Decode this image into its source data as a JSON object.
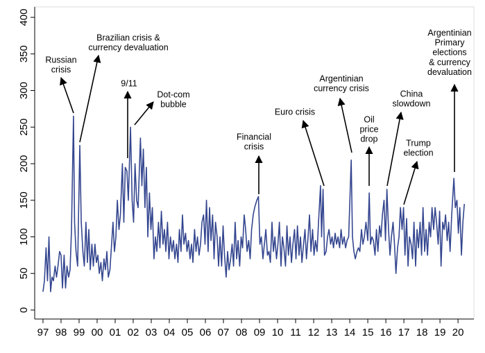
{
  "chart_data": {
    "type": "line",
    "color": "#34468f",
    "xlim": [
      1996.54,
      2020.88
    ],
    "ylim": [
      -12.3,
      409.5
    ],
    "yticks": [
      0,
      50,
      100,
      150,
      200,
      250,
      300,
      350,
      400
    ],
    "xticks": [
      {
        "value": 1997,
        "label": "97"
      },
      {
        "value": 1998,
        "label": "98"
      },
      {
        "value": 1999,
        "label": "99"
      },
      {
        "value": 2000,
        "label": "00"
      },
      {
        "value": 2001,
        "label": "01"
      },
      {
        "value": 2002,
        "label": "02"
      },
      {
        "value": 2003,
        "label": "03"
      },
      {
        "value": 2004,
        "label": "04"
      },
      {
        "value": 2005,
        "label": "05"
      },
      {
        "value": 2006,
        "label": "06"
      },
      {
        "value": 2007,
        "label": "07"
      },
      {
        "value": 2008,
        "label": "08"
      },
      {
        "value": 2009,
        "label": "09"
      },
      {
        "value": 2010,
        "label": "10"
      },
      {
        "value": 2011,
        "label": "11"
      },
      {
        "value": 2012,
        "label": "12"
      },
      {
        "value": 2013,
        "label": "13"
      },
      {
        "value": 2014,
        "label": "14"
      },
      {
        "value": 2015,
        "label": "15"
      },
      {
        "value": 2016,
        "label": "16"
      },
      {
        "value": 2017,
        "label": "17"
      },
      {
        "value": 2018,
        "label": "18"
      },
      {
        "value": 2019,
        "label": "19"
      },
      {
        "value": 2020,
        "label": "20"
      }
    ],
    "x": [
      1997.0,
      1997.08,
      1997.17,
      1997.25,
      1997.33,
      1997.42,
      1997.5,
      1997.58,
      1997.67,
      1997.75,
      1997.83,
      1997.92,
      1998.0,
      1998.08,
      1998.17,
      1998.25,
      1998.33,
      1998.42,
      1998.5,
      1998.58,
      1998.69,
      1998.75,
      1998.83,
      1998.92,
      1999.04,
      1999.12,
      1999.21,
      1999.29,
      1999.38,
      1999.46,
      1999.54,
      1999.62,
      1999.71,
      1999.79,
      1999.88,
      1999.96,
      2000.04,
      2000.12,
      2000.21,
      2000.29,
      2000.38,
      2000.46,
      2000.54,
      2000.62,
      2000.71,
      2000.88,
      2000.96,
      2001.04,
      2001.12,
      2001.21,
      2001.29,
      2001.4,
      2001.48,
      2001.56,
      2001.65,
      2001.73,
      2001.85,
      2001.94,
      2002.02,
      2002.1,
      2002.19,
      2002.27,
      2002.4,
      2002.48,
      2002.56,
      2002.65,
      2002.73,
      2002.81,
      2002.9,
      2002.98,
      2003.06,
      2003.15,
      2003.23,
      2003.31,
      2003.4,
      2003.48,
      2003.56,
      2003.65,
      2003.73,
      2003.81,
      2003.9,
      2003.98,
      2004.06,
      2004.15,
      2004.23,
      2004.31,
      2004.4,
      2004.48,
      2004.56,
      2004.65,
      2004.73,
      2004.81,
      2004.9,
      2004.98,
      2005.06,
      2005.15,
      2005.23,
      2005.31,
      2005.4,
      2005.48,
      2005.56,
      2005.65,
      2005.73,
      2005.81,
      2005.9,
      2005.98,
      2006.06,
      2006.15,
      2006.23,
      2006.31,
      2006.4,
      2006.48,
      2006.56,
      2006.65,
      2006.73,
      2006.81,
      2006.9,
      2006.98,
      2007.06,
      2007.15,
      2007.23,
      2007.31,
      2007.4,
      2007.48,
      2007.56,
      2007.65,
      2007.73,
      2007.81,
      2007.9,
      2007.98,
      2008.06,
      2008.15,
      2008.23,
      2008.31,
      2008.4,
      2008.48,
      2008.56,
      2008.65,
      2008.73,
      2008.85,
      2008.94,
      2009.02,
      2009.1,
      2009.19,
      2009.27,
      2009.35,
      2009.44,
      2009.52,
      2009.6,
      2009.69,
      2009.77,
      2009.85,
      2009.94,
      2010.02,
      2010.1,
      2010.19,
      2010.27,
      2010.35,
      2010.44,
      2010.52,
      2010.6,
      2010.69,
      2010.77,
      2010.85,
      2010.94,
      2011.02,
      2011.1,
      2011.19,
      2011.27,
      2011.35,
      2011.44,
      2011.52,
      2011.6,
      2011.69,
      2011.77,
      2011.85,
      2011.94,
      2012.02,
      2012.1,
      2012.19,
      2012.27,
      2012.38,
      2012.44,
      2012.52,
      2012.6,
      2012.69,
      2012.77,
      2012.85,
      2012.94,
      2013.02,
      2013.1,
      2013.19,
      2013.27,
      2013.35,
      2013.44,
      2013.52,
      2013.6,
      2013.69,
      2013.77,
      2013.85,
      2013.94,
      2014.08,
      2014.15,
      2014.23,
      2014.31,
      2014.4,
      2014.48,
      2014.56,
      2014.65,
      2014.73,
      2014.81,
      2014.9,
      2015.0,
      2015.08,
      2015.15,
      2015.23,
      2015.31,
      2015.4,
      2015.48,
      2015.56,
      2015.65,
      2015.73,
      2015.81,
      2015.9,
      2015.98,
      2016.06,
      2016.15,
      2016.23,
      2016.31,
      2016.4,
      2016.48,
      2016.56,
      2016.65,
      2016.73,
      2016.81,
      2016.9,
      2016.98,
      2017.06,
      2017.15,
      2017.23,
      2017.31,
      2017.4,
      2017.48,
      2017.56,
      2017.65,
      2017.73,
      2017.81,
      2017.9,
      2017.98,
      2018.06,
      2018.15,
      2018.23,
      2018.31,
      2018.4,
      2018.48,
      2018.56,
      2018.65,
      2018.73,
      2018.81,
      2018.9,
      2018.98,
      2019.06,
      2019.15,
      2019.23,
      2019.31,
      2019.4,
      2019.48,
      2019.56,
      2019.65,
      2019.77,
      2019.85,
      2019.94,
      2020.02,
      2020.1,
      2020.19,
      2020.27,
      2020.35
    ],
    "values": [
      25,
      40,
      85,
      40,
      100,
      25,
      45,
      40,
      60,
      45,
      60,
      80,
      75,
      30,
      75,
      30,
      60,
      45,
      55,
      110,
      265,
      120,
      80,
      60,
      225,
      120,
      80,
      60,
      120,
      65,
      110,
      55,
      90,
      60,
      90,
      65,
      75,
      50,
      65,
      40,
      70,
      55,
      80,
      45,
      55,
      120,
      80,
      100,
      150,
      110,
      130,
      200,
      120,
      195,
      190,
      150,
      250,
      150,
      120,
      200,
      150,
      140,
      235,
      170,
      220,
      140,
      195,
      100,
      160,
      110,
      140,
      70,
      100,
      80,
      120,
      85,
      135,
      90,
      110,
      80,
      120,
      70,
      100,
      80,
      95,
      70,
      90,
      65,
      110,
      80,
      130,
      90,
      105,
      80,
      95,
      70,
      90,
      65,
      110,
      80,
      100,
      75,
      90,
      120,
      130,
      90,
      150,
      80,
      140,
      95,
      130,
      70,
      120,
      100,
      60,
      100,
      60,
      115,
      75,
      45,
      80,
      55,
      70,
      90,
      60,
      120,
      70,
      95,
      60,
      100,
      85,
      130,
      110,
      80,
      95,
      70,
      110,
      130,
      140,
      150,
      155,
      90,
      100,
      70,
      90,
      110,
      75,
      80,
      65,
      120,
      80,
      100,
      70,
      90,
      120,
      60,
      100,
      85,
      60,
      115,
      75,
      100,
      65,
      90,
      110,
      70,
      115,
      75,
      100,
      65,
      90,
      110,
      70,
      100,
      130,
      80,
      110,
      75,
      95,
      80,
      120,
      170,
      100,
      165,
      75,
      80,
      100,
      110,
      90,
      100,
      85,
      105,
      90,
      100,
      85,
      110,
      90,
      100,
      85,
      95,
      100,
      205,
      100,
      80,
      70,
      80,
      85,
      80,
      110,
      90,
      100,
      120,
      95,
      160,
      90,
      100,
      95,
      75,
      110,
      80,
      115,
      100,
      130,
      150,
      95,
      165,
      110,
      75,
      100,
      120,
      90,
      50,
      85,
      100,
      140,
      110,
      140,
      75,
      125,
      60,
      100,
      90,
      70,
      120,
      60,
      110,
      85,
      120,
      75,
      140,
      80,
      110,
      75,
      120,
      100,
      140,
      110,
      140,
      120,
      90,
      135,
      60,
      120,
      110,
      130,
      95,
      120,
      80,
      130,
      180,
      140,
      150,
      105,
      140,
      75,
      120,
      145
    ],
    "annotations": [
      {
        "lines": [
          "Russian",
          "crisis"
        ]
      },
      {
        "lines": [
          "Brazilian crisis &",
          "currency devaluation"
        ]
      },
      {
        "lines": [
          "9/11"
        ]
      },
      {
        "lines": [
          "Dot-com",
          "bubble"
        ]
      },
      {
        "lines": [
          "Financial",
          "crisis"
        ]
      },
      {
        "lines": [
          "Euro crisis"
        ]
      },
      {
        "lines": [
          "Argentinian",
          "currency crisis"
        ]
      },
      {
        "lines": [
          "Oil",
          "price",
          "drop"
        ]
      },
      {
        "lines": [
          "China",
          "slowdown"
        ]
      },
      {
        "lines": [
          "Trump",
          "election"
        ]
      },
      {
        "lines": [
          "Argentinian",
          "Primary",
          "elections",
          "& currency",
          "devaluation"
        ]
      }
    ]
  }
}
